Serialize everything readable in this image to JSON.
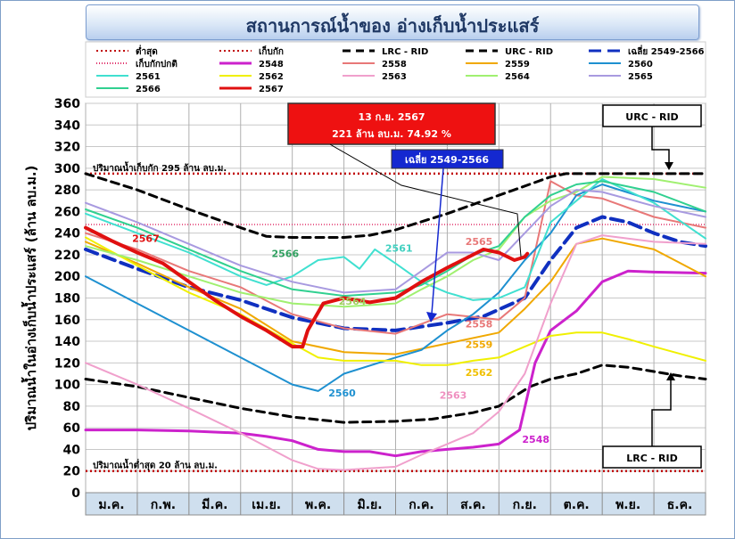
{
  "title": "สถานการณ์น้ำของ อ่างเก็บน้ำประแสร์",
  "chart_data": {
    "type": "line",
    "ylabel": "ปริมาณน้ำในอ่างเก็บน้ำประแสร์ (ล้าน ลบ.ม.)",
    "ylim": [
      0,
      360
    ],
    "yticks": [
      0,
      20,
      40,
      60,
      80,
      100,
      120,
      140,
      160,
      180,
      200,
      220,
      240,
      260,
      280,
      300,
      320,
      340,
      360
    ],
    "months": [
      "ม.ค.",
      "ก.พ.",
      "มี.ค.",
      "เม.ย.",
      "พ.ค.",
      "มิ.ย.",
      "ก.ค.",
      "ส.ค.",
      "ก.ย.",
      "ต.ค.",
      "พ.ย.",
      "ธ.ค."
    ],
    "grid": true,
    "legend_position": "top",
    "reference_lines": [
      {
        "name": "ต่ำสุด",
        "value": 20,
        "color": "#c00000",
        "dash": "2,3",
        "label": "ปริมาณน้ำต่ำสุด 20 ล้าน ลบ.ม."
      },
      {
        "name": "เก็บกัก",
        "value": 295,
        "color": "#c00000",
        "dash": "2,3",
        "label": "ปริมาณน้ำเก็บกัก 295 ล้าน ลบ.ม."
      },
      {
        "name": "เก็บกักปกติ",
        "value": 248,
        "color": "#e0306a",
        "dash": "1,2",
        "label": ""
      }
    ],
    "series": [
      {
        "name": "LRC - RID",
        "color": "#000000",
        "width": 3,
        "dash": "9,6",
        "points": [
          [
            0,
            105
          ],
          [
            1,
            98
          ],
          [
            2,
            88
          ],
          [
            3,
            78
          ],
          [
            4,
            70
          ],
          [
            5,
            65
          ],
          [
            6,
            66
          ],
          [
            6.7,
            68
          ],
          [
            7.5,
            74
          ],
          [
            8,
            80
          ],
          [
            8.6,
            98
          ],
          [
            9,
            105
          ],
          [
            9.5,
            110
          ],
          [
            10,
            118
          ],
          [
            10.5,
            116
          ],
          [
            11,
            112
          ],
          [
            11.5,
            108
          ],
          [
            12,
            105
          ]
        ]
      },
      {
        "name": "URC - RID",
        "color": "#000000",
        "width": 3,
        "dash": "9,6",
        "points": [
          [
            0,
            295
          ],
          [
            1,
            280
          ],
          [
            2,
            262
          ],
          [
            3,
            245
          ],
          [
            3.5,
            237
          ],
          [
            4,
            236
          ],
          [
            5,
            236
          ],
          [
            5.5,
            238
          ],
          [
            6,
            243
          ],
          [
            7,
            258
          ],
          [
            8,
            275
          ],
          [
            9,
            292
          ],
          [
            9.3,
            295
          ],
          [
            12,
            295
          ]
        ]
      },
      {
        "name": "เฉลี่ย 2549-2566",
        "color": "#1030c0",
        "width": 4,
        "dash": "14,7",
        "points": [
          [
            0,
            225
          ],
          [
            1,
            207
          ],
          [
            2,
            190
          ],
          [
            3,
            178
          ],
          [
            4,
            162
          ],
          [
            5,
            152
          ],
          [
            6,
            150
          ],
          [
            7,
            157
          ],
          [
            7.7,
            163
          ],
          [
            8.5,
            180
          ],
          [
            9,
            215
          ],
          [
            9.5,
            245
          ],
          [
            10,
            255
          ],
          [
            10.5,
            250
          ],
          [
            11,
            240
          ],
          [
            11.5,
            232
          ],
          [
            12,
            228
          ]
        ]
      },
      {
        "name": "2548",
        "color": "#cc22cc",
        "width": 3,
        "points": [
          [
            0,
            58
          ],
          [
            1,
            58
          ],
          [
            2,
            57
          ],
          [
            3,
            55
          ],
          [
            3.5,
            52
          ],
          [
            4,
            48
          ],
          [
            4.5,
            40
          ],
          [
            5,
            38
          ],
          [
            5.5,
            38
          ],
          [
            6,
            34
          ],
          [
            6.5,
            38
          ],
          [
            7,
            40
          ],
          [
            7.5,
            42
          ],
          [
            8,
            45
          ],
          [
            8.4,
            58
          ],
          [
            8.7,
            120
          ],
          [
            9,
            150
          ],
          [
            9.5,
            168
          ],
          [
            10,
            195
          ],
          [
            10.5,
            205
          ],
          [
            11,
            204
          ],
          [
            12,
            203
          ]
        ]
      },
      {
        "name": "2558",
        "color": "#e87878",
        "width": 2,
        "points": [
          [
            0,
            240
          ],
          [
            1,
            225
          ],
          [
            2,
            205
          ],
          [
            3,
            190
          ],
          [
            4,
            165
          ],
          [
            5,
            152
          ],
          [
            6,
            147
          ],
          [
            7,
            165
          ],
          [
            8,
            160
          ],
          [
            8.5,
            180
          ],
          [
            9,
            288
          ],
          [
            9.5,
            275
          ],
          [
            10,
            272
          ],
          [
            11,
            255
          ],
          [
            12,
            245
          ]
        ]
      },
      {
        "name": "2559",
        "color": "#f0a800",
        "width": 2,
        "points": [
          [
            0,
            232
          ],
          [
            1,
            212
          ],
          [
            2,
            190
          ],
          [
            3,
            170
          ],
          [
            4,
            140
          ],
          [
            5,
            130
          ],
          [
            6,
            128
          ],
          [
            7,
            138
          ],
          [
            8,
            148
          ],
          [
            8.5,
            170
          ],
          [
            9,
            195
          ],
          [
            9.5,
            230
          ],
          [
            10,
            235
          ],
          [
            11,
            225
          ],
          [
            12,
            200
          ]
        ]
      },
      {
        "name": "2560",
        "color": "#1e90d0",
        "width": 2,
        "points": [
          [
            0,
            200
          ],
          [
            1,
            175
          ],
          [
            2,
            150
          ],
          [
            3,
            125
          ],
          [
            4,
            100
          ],
          [
            4.5,
            94
          ],
          [
            5,
            110
          ],
          [
            6,
            125
          ],
          [
            6.5,
            132
          ],
          [
            7,
            150
          ],
          [
            7.5,
            165
          ],
          [
            8,
            185
          ],
          [
            8.5,
            215
          ],
          [
            9,
            240
          ],
          [
            9.5,
            275
          ],
          [
            10,
            285
          ],
          [
            11,
            270
          ],
          [
            12,
            260
          ]
        ]
      },
      {
        "name": "2561",
        "color": "#40e0d0",
        "width": 2,
        "points": [
          [
            0,
            258
          ],
          [
            1,
            240
          ],
          [
            2,
            222
          ],
          [
            3,
            200
          ],
          [
            3.5,
            192
          ],
          [
            4,
            200
          ],
          [
            4.5,
            215
          ],
          [
            5,
            218
          ],
          [
            5.3,
            207
          ],
          [
            5.6,
            225
          ],
          [
            6,
            212
          ],
          [
            6.5,
            195
          ],
          [
            7,
            185
          ],
          [
            7.5,
            178
          ],
          [
            8,
            180
          ],
          [
            8.5,
            190
          ],
          [
            9,
            250
          ],
          [
            9.5,
            270
          ],
          [
            10,
            290
          ],
          [
            11,
            268
          ],
          [
            12,
            235
          ]
        ]
      },
      {
        "name": "2562",
        "color": "#f0f000",
        "width": 2,
        "points": [
          [
            0,
            236
          ],
          [
            1,
            210
          ],
          [
            2,
            185
          ],
          [
            3,
            165
          ],
          [
            4,
            138
          ],
          [
            4.5,
            125
          ],
          [
            5,
            122
          ],
          [
            6,
            122
          ],
          [
            6.5,
            118
          ],
          [
            7,
            118
          ],
          [
            7.5,
            122
          ],
          [
            8,
            125
          ],
          [
            8.5,
            135
          ],
          [
            9,
            145
          ],
          [
            9.5,
            148
          ],
          [
            10,
            148
          ],
          [
            10.5,
            142
          ],
          [
            11,
            135
          ],
          [
            12,
            122
          ]
        ]
      },
      {
        "name": "2563",
        "color": "#f0a0cc",
        "width": 2,
        "points": [
          [
            0,
            120
          ],
          [
            1,
            100
          ],
          [
            2,
            78
          ],
          [
            3,
            55
          ],
          [
            4,
            30
          ],
          [
            4.5,
            22
          ],
          [
            5,
            21
          ],
          [
            6,
            24
          ],
          [
            6.5,
            35
          ],
          [
            7,
            45
          ],
          [
            7.5,
            55
          ],
          [
            8,
            75
          ],
          [
            8.5,
            110
          ],
          [
            9,
            175
          ],
          [
            9.5,
            230
          ],
          [
            10,
            238
          ],
          [
            11,
            232
          ],
          [
            12,
            230
          ]
        ]
      },
      {
        "name": "2564",
        "color": "#a0f070",
        "width": 2,
        "points": [
          [
            0,
            228
          ],
          [
            1,
            215
          ],
          [
            2,
            200
          ],
          [
            3,
            185
          ],
          [
            4,
            175
          ],
          [
            5,
            172
          ],
          [
            6,
            175
          ],
          [
            6.5,
            188
          ],
          [
            7,
            200
          ],
          [
            7.5,
            215
          ],
          [
            8,
            225
          ],
          [
            8.5,
            255
          ],
          [
            9,
            270
          ],
          [
            9.5,
            278
          ],
          [
            10,
            292
          ],
          [
            11,
            290
          ],
          [
            12,
            282
          ]
        ]
      },
      {
        "name": "2565",
        "color": "#a89ae0",
        "width": 2,
        "points": [
          [
            0,
            268
          ],
          [
            1,
            250
          ],
          [
            2,
            230
          ],
          [
            3,
            210
          ],
          [
            4,
            195
          ],
          [
            5,
            185
          ],
          [
            6,
            188
          ],
          [
            6.5,
            205
          ],
          [
            7,
            222
          ],
          [
            7.5,
            222
          ],
          [
            8,
            215
          ],
          [
            8.5,
            240
          ],
          [
            9,
            265
          ],
          [
            9.5,
            280
          ],
          [
            10,
            278
          ],
          [
            11,
            265
          ],
          [
            12,
            255
          ]
        ]
      },
      {
        "name": "2566",
        "color": "#30d090",
        "width": 2,
        "points": [
          [
            0,
            262
          ],
          [
            1,
            245
          ],
          [
            2,
            225
          ],
          [
            3,
            205
          ],
          [
            4,
            188
          ],
          [
            5,
            182
          ],
          [
            6,
            185
          ],
          [
            6.5,
            192
          ],
          [
            7,
            205
          ],
          [
            7.5,
            220
          ],
          [
            8,
            228
          ],
          [
            8.5,
            255
          ],
          [
            9,
            275
          ],
          [
            9.5,
            285
          ],
          [
            10,
            288
          ],
          [
            11,
            278
          ],
          [
            12,
            260
          ]
        ]
      },
      {
        "name": "2567",
        "color": "#e01010",
        "width": 4,
        "points": [
          [
            0,
            245
          ],
          [
            0.5,
            233
          ],
          [
            1,
            222
          ],
          [
            1.5,
            212
          ],
          [
            2,
            195
          ],
          [
            2.5,
            178
          ],
          [
            3,
            163
          ],
          [
            3.5,
            150
          ],
          [
            4,
            135
          ],
          [
            4.2,
            135
          ],
          [
            4.3,
            150
          ],
          [
            4.6,
            175
          ],
          [
            5,
            180
          ],
          [
            5.5,
            176
          ],
          [
            6,
            180
          ],
          [
            6.5,
            195
          ],
          [
            7,
            208
          ],
          [
            7.5,
            220
          ],
          [
            7.7,
            225
          ],
          [
            8,
            222
          ],
          [
            8.3,
            215
          ],
          [
            8.5,
            218
          ],
          [
            8.55,
            221
          ]
        ]
      }
    ],
    "legend": [
      "ต่ำสุด",
      "เก็บกัก",
      "LRC - RID",
      "URC - RID",
      "เฉลี่ย 2549-2566",
      "เก็บกักปกติ",
      "2548",
      "2558",
      "2559",
      "2560",
      "2561",
      "2562",
      "2563",
      "2564",
      "2565",
      "2566",
      "2567"
    ],
    "series_labels": [
      {
        "text": "2567",
        "x": 0.9,
        "y": 232,
        "color": "#e01010"
      },
      {
        "text": "2566",
        "x": 3.6,
        "y": 218,
        "color": "#30a060"
      },
      {
        "text": "2561",
        "x": 5.8,
        "y": 223,
        "color": "#40d0c0"
      },
      {
        "text": "2565",
        "x": 7.35,
        "y": 229,
        "color": "#e87878"
      },
      {
        "text": "2564",
        "x": 4.9,
        "y": 174,
        "color": "#a0d060"
      },
      {
        "text": "2558",
        "x": 7.35,
        "y": 153,
        "color": "#e87878"
      },
      {
        "text": "2559",
        "x": 7.35,
        "y": 134,
        "color": "#f0a800"
      },
      {
        "text": "2562",
        "x": 7.35,
        "y": 108,
        "color": "#f0c000"
      },
      {
        "text": "2563",
        "x": 6.85,
        "y": 87,
        "color": "#f090c0"
      },
      {
        "text": "2560",
        "x": 4.7,
        "y": 89,
        "color": "#1e90d0"
      },
      {
        "text": "2548",
        "x": 8.45,
        "y": 46,
        "color": "#cc22cc"
      }
    ],
    "annotations": {
      "current": {
        "line1": "13 ก.ย. 2567",
        "line2": "221 ล้าน ลบ.ม. 74.92 %"
      },
      "average": "เฉลี่ย 2549-2566",
      "urc": "URC - RID",
      "lrc": "LRC - RID"
    }
  }
}
